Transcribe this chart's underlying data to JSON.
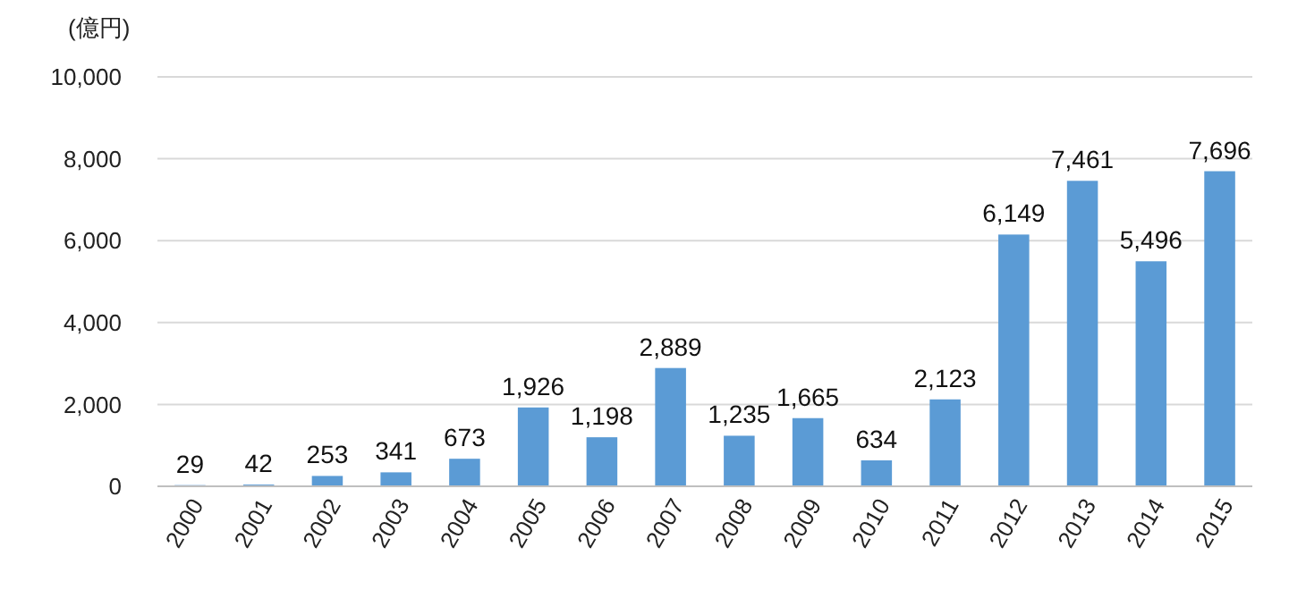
{
  "chart_data": {
    "type": "bar",
    "ylabel": "(億円)",
    "categories": [
      "2000",
      "2001",
      "2002",
      "2003",
      "2004",
      "2005",
      "2006",
      "2007",
      "2008",
      "2009",
      "2010",
      "2011",
      "2012",
      "2013",
      "2014",
      "2015"
    ],
    "values": [
      29,
      42,
      253,
      341,
      673,
      1926,
      1198,
      2889,
      1235,
      1665,
      634,
      2123,
      6149,
      7461,
      5496,
      7696
    ],
    "value_labels": [
      "29",
      "42",
      "253",
      "341",
      "673",
      "1,926",
      "1,198",
      "2,889",
      "1,235",
      "1,665",
      "634",
      "2,123",
      "6,149",
      "7,461",
      "5,496",
      "7,696"
    ],
    "color": "#5b9bd5",
    "ylim": [
      0,
      10000
    ],
    "yticks": [
      0,
      {
        "value": 2000,
        "label": "2,000"
      },
      {
        "value": 4000,
        "label": "4,000"
      },
      {
        "value": 6000,
        "label": "6,000"
      },
      {
        "value": 8000,
        "label": "8,000"
      },
      {
        "value": 10000,
        "label": "10,000"
      }
    ],
    "grid": "y"
  }
}
